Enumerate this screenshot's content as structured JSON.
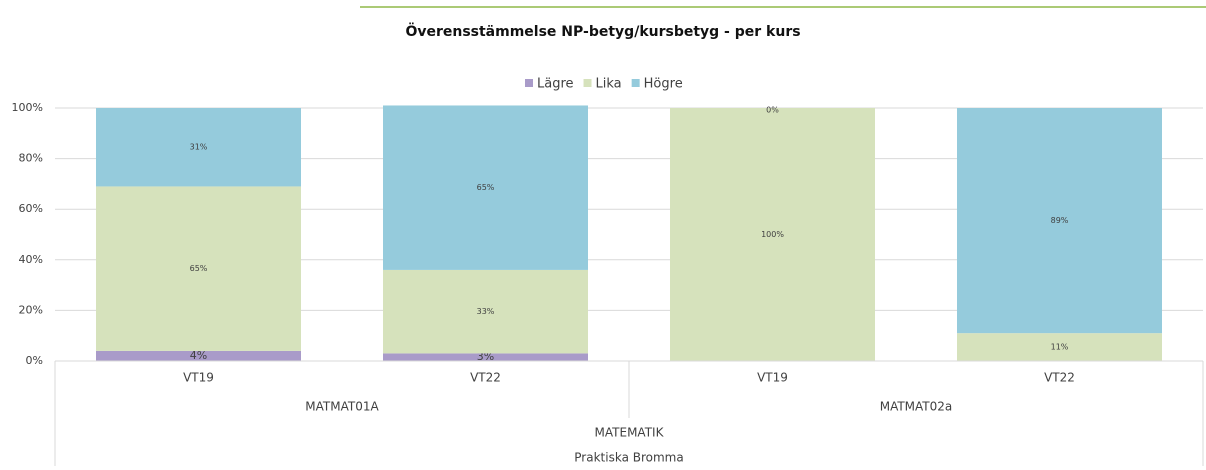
{
  "chart_data": {
    "type": "bar",
    "stacked": true,
    "title": "Överensstämmelse NP-betyg/kursbetyg - per kurs",
    "groups": [
      {
        "name": "MATMAT01A",
        "categories": [
          "VT19",
          "VT22"
        ]
      },
      {
        "name": "MATMAT02a",
        "categories": [
          "VT19",
          "VT22"
        ]
      }
    ],
    "parent": "MATEMATIK",
    "school": "Praktiska Bromma",
    "series": [
      {
        "name": "Lägre",
        "color": "#a99bc9",
        "values": [
          4,
          3,
          0,
          0
        ],
        "value_labels": [
          "4%",
          "3%",
          "0%",
          "0%"
        ]
      },
      {
        "name": "Lika",
        "color": "#d6e2bc",
        "values": [
          65,
          33,
          100,
          11
        ],
        "value_labels": [
          "65%",
          "33%",
          "100%",
          "11%"
        ]
      },
      {
        "name": "Högre",
        "color": "#95cbdc",
        "values": [
          31,
          65,
          0,
          89
        ],
        "value_labels": [
          "31%",
          "65%",
          "0%",
          "89%"
        ]
      }
    ],
    "ylim": [
      0,
      100
    ],
    "yticks": [
      {
        "value": 0,
        "label": "0%"
      },
      {
        "value": 20,
        "label": "20%"
      },
      {
        "value": 40,
        "label": "40%"
      },
      {
        "value": 60,
        "label": "60%"
      },
      {
        "value": 80,
        "label": "80%"
      },
      {
        "value": 100,
        "label": "100%"
      }
    ],
    "grid": true,
    "legend": "top"
  }
}
